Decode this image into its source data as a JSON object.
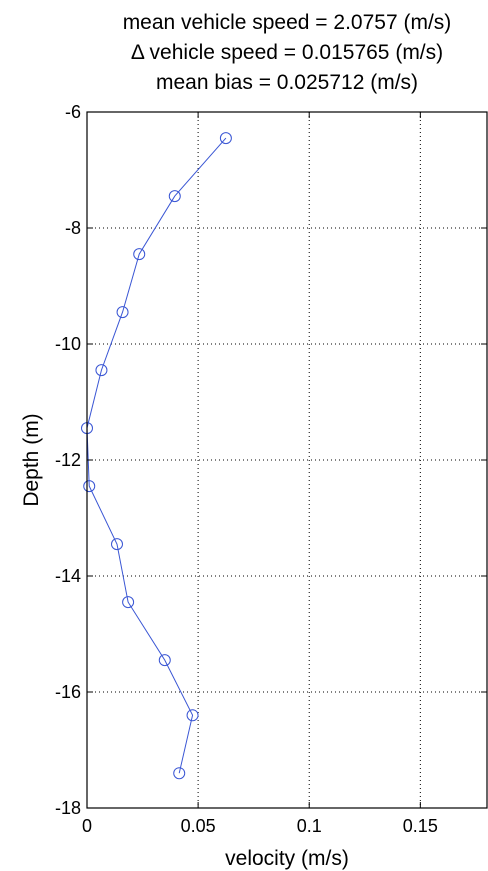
{
  "chart_data": {
    "type": "line",
    "title_lines": [
      "mean vehicle speed = 2.0757 (m/s)",
      "Δ vehicle speed = 0.015765 (m/s)",
      "mean bias = 0.025712 (m/s)"
    ],
    "xlabel": "velocity (m/s)",
    "ylabel": "Depth (m)",
    "xlim": [
      0,
      0.18
    ],
    "ylim": [
      -18,
      -6
    ],
    "xticks": [
      0,
      0.05,
      0.1,
      0.15
    ],
    "xtick_labels": [
      "0",
      "0.05",
      "0.1",
      "0.15"
    ],
    "yticks": [
      -18,
      -16,
      -14,
      -12,
      -10,
      -8,
      -6
    ],
    "ytick_labels": [
      "-18",
      "-16",
      "-14",
      "-12",
      "-10",
      "-8",
      "-6"
    ],
    "grid": true,
    "series": [
      {
        "marker": "circle",
        "color": "#3a56d4",
        "x": [
          0.0625,
          0.0395,
          0.0235,
          0.016,
          0.0065,
          0.0,
          0.001,
          0.0135,
          0.0185,
          0.035,
          0.0475,
          0.0415
        ],
        "y": [
          -6.45,
          -7.45,
          -8.45,
          -9.45,
          -10.45,
          -11.45,
          -12.45,
          -13.45,
          -14.45,
          -15.45,
          -16.4,
          -17.4
        ]
      }
    ]
  }
}
